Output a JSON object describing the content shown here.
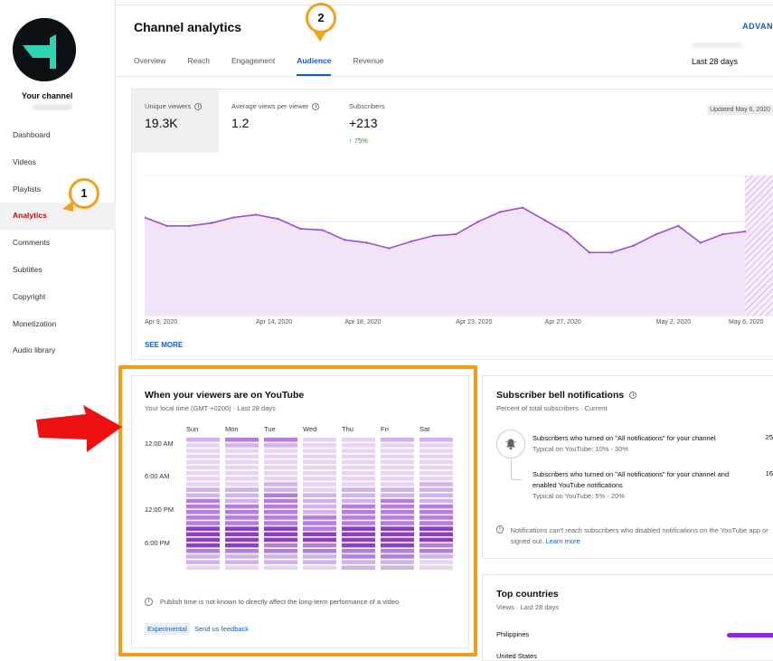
{
  "sidebar": {
    "channel_label": "Your channel",
    "items": [
      {
        "label": "Dashboard",
        "active": false
      },
      {
        "label": "Videos",
        "active": false
      },
      {
        "label": "Playlists",
        "active": false
      },
      {
        "label": "Analytics",
        "active": true
      },
      {
        "label": "Comments",
        "active": false
      },
      {
        "label": "Subtitles",
        "active": false
      },
      {
        "label": "Copyright",
        "active": false
      },
      {
        "label": "Monetization",
        "active": false
      },
      {
        "label": "Audio library",
        "active": false
      }
    ]
  },
  "header": {
    "title": "Channel analytics",
    "advanced_label": "ADVAN",
    "period": "Last 28 days",
    "tabs": [
      {
        "label": "Overview",
        "active": false
      },
      {
        "label": "Reach",
        "active": false
      },
      {
        "label": "Engagement",
        "active": false
      },
      {
        "label": "Audience",
        "active": true
      },
      {
        "label": "Revenue",
        "active": false
      }
    ]
  },
  "annotations": {
    "badge_1": "1",
    "badge_2": "2",
    "accent_color": "#f29c11",
    "arrow_color": "#ee1111"
  },
  "metrics": {
    "updated": "Updated May 6, 2020",
    "items": [
      {
        "label": "Unique viewers",
        "value": "19.3K",
        "delta": ""
      },
      {
        "label": "Average views per viewer",
        "value": "1.2",
        "delta": ""
      },
      {
        "label": "Subscribers",
        "value": "+213",
        "delta": "75%"
      }
    ],
    "see_more": "SEE MORE"
  },
  "chart_data": {
    "type": "area",
    "x": [
      "Apr 9",
      "Apr 10",
      "Apr 11",
      "Apr 12",
      "Apr 13",
      "Apr 14",
      "Apr 15",
      "Apr 16",
      "Apr 17",
      "Apr 18",
      "Apr 19",
      "Apr 20",
      "Apr 21",
      "Apr 22",
      "Apr 23",
      "Apr 24",
      "Apr 25",
      "Apr 26",
      "Apr 27",
      "Apr 28",
      "Apr 29",
      "Apr 30",
      "May 1",
      "May 2",
      "May 3",
      "May 4",
      "May 5",
      "May 6"
    ],
    "values": [
      0.7,
      0.64,
      0.64,
      0.66,
      0.7,
      0.72,
      0.69,
      0.62,
      0.61,
      0.54,
      0.52,
      0.48,
      0.53,
      0.57,
      0.58,
      0.67,
      0.74,
      0.77,
      0.68,
      0.59,
      0.45,
      0.45,
      0.5,
      0.58,
      0.64,
      0.52,
      0.58,
      0.6
    ],
    "x_tick_labels": [
      "Apr 9, 2020",
      "Apr 14, 2020",
      "Apr 18, 2020",
      "Apr 23, 2020",
      "Apr 27, 2020",
      "May 2, 2020",
      "May 6, 2020"
    ],
    "x_tick_index": [
      0,
      5,
      9,
      14,
      18,
      23,
      27
    ],
    "ylim": [
      0,
      1
    ],
    "grid": true,
    "line_color": "#9a4fd1",
    "fill_color": "#f1e4f8"
  },
  "heatmap": {
    "title": "When your viewers are on YouTube",
    "subtitle": "Your local time (GMT +0200) · Last 28 days",
    "days": [
      "Sun",
      "Mon",
      "Tue",
      "Wed",
      "Thu",
      "Fri",
      "Sat"
    ],
    "time_labels": [
      "12:00 AM",
      "6:00 AM",
      "12:00 PM",
      "6:00 PM"
    ],
    "levels_by_hour": [
      [
        2,
        3,
        3,
        1,
        1,
        2,
        2
      ],
      [
        1,
        2,
        2,
        1,
        1,
        1,
        1
      ],
      [
        1,
        1,
        1,
        1,
        1,
        1,
        1
      ],
      [
        1,
        1,
        1,
        1,
        1,
        1,
        1
      ],
      [
        1,
        1,
        1,
        1,
        1,
        1,
        1
      ],
      [
        1,
        1,
        1,
        1,
        1,
        1,
        1
      ],
      [
        1,
        1,
        1,
        1,
        1,
        1,
        1
      ],
      [
        1,
        1,
        1,
        1,
        1,
        1,
        1
      ],
      [
        1,
        1,
        2,
        1,
        1,
        1,
        2
      ],
      [
        2,
        2,
        2,
        1,
        2,
        2,
        2
      ],
      [
        2,
        2,
        3,
        2,
        2,
        2,
        2
      ],
      [
        3,
        2,
        3,
        2,
        2,
        3,
        2
      ],
      [
        3,
        3,
        3,
        2,
        3,
        3,
        3
      ],
      [
        3,
        3,
        3,
        2,
        3,
        3,
        3
      ],
      [
        3,
        3,
        3,
        3,
        3,
        3,
        3
      ],
      [
        3,
        3,
        3,
        3,
        3,
        3,
        3
      ],
      [
        4,
        4,
        4,
        3,
        4,
        4,
        4
      ],
      [
        4,
        4,
        4,
        4,
        4,
        4,
        4
      ],
      [
        4,
        4,
        4,
        4,
        4,
        4,
        4
      ],
      [
        4,
        4,
        3,
        3,
        4,
        4,
        3
      ],
      [
        3,
        3,
        3,
        3,
        3,
        3,
        3
      ],
      [
        2,
        2,
        2,
        2,
        3,
        3,
        2
      ],
      [
        2,
        2,
        2,
        2,
        2,
        2,
        1
      ],
      [
        1,
        1,
        1,
        1,
        2,
        2,
        1
      ]
    ],
    "palette": [
      "#f3eaf8",
      "#e6d4f2",
      "#d2b2ea",
      "#b77ddc",
      "#8c3fc3"
    ],
    "note": "Publish time is not known to directly affect the long-term performance of a video",
    "experimental": "Experimental",
    "feedback": "Send us feedback"
  },
  "bell": {
    "title": "Subscriber bell notifications",
    "subtitle": "Percent of total subscribers · Current",
    "row1_text": "Subscribers who turned on \"All notifications\" for your channel",
    "row1_typical": "Typical on YouTube: 10% - 30%",
    "row1_value": "25",
    "row2_text": "Subscribers who turned on \"All notifications\" for your channel and enabled YouTube notifications",
    "row2_typical": "Typical on YouTube: 5% - 20%",
    "row2_value": "16",
    "footnote": "Notifications can't reach subscribers who disabled notifications on the YouTube app or signed out.",
    "learn_more": "Learn more"
  },
  "countries": {
    "title": "Top countries",
    "subtitle": "Views · Last 28 days",
    "items": [
      {
        "name": "Philippines",
        "share": 0.7
      },
      {
        "name": "United States",
        "share": 0.15
      }
    ]
  }
}
